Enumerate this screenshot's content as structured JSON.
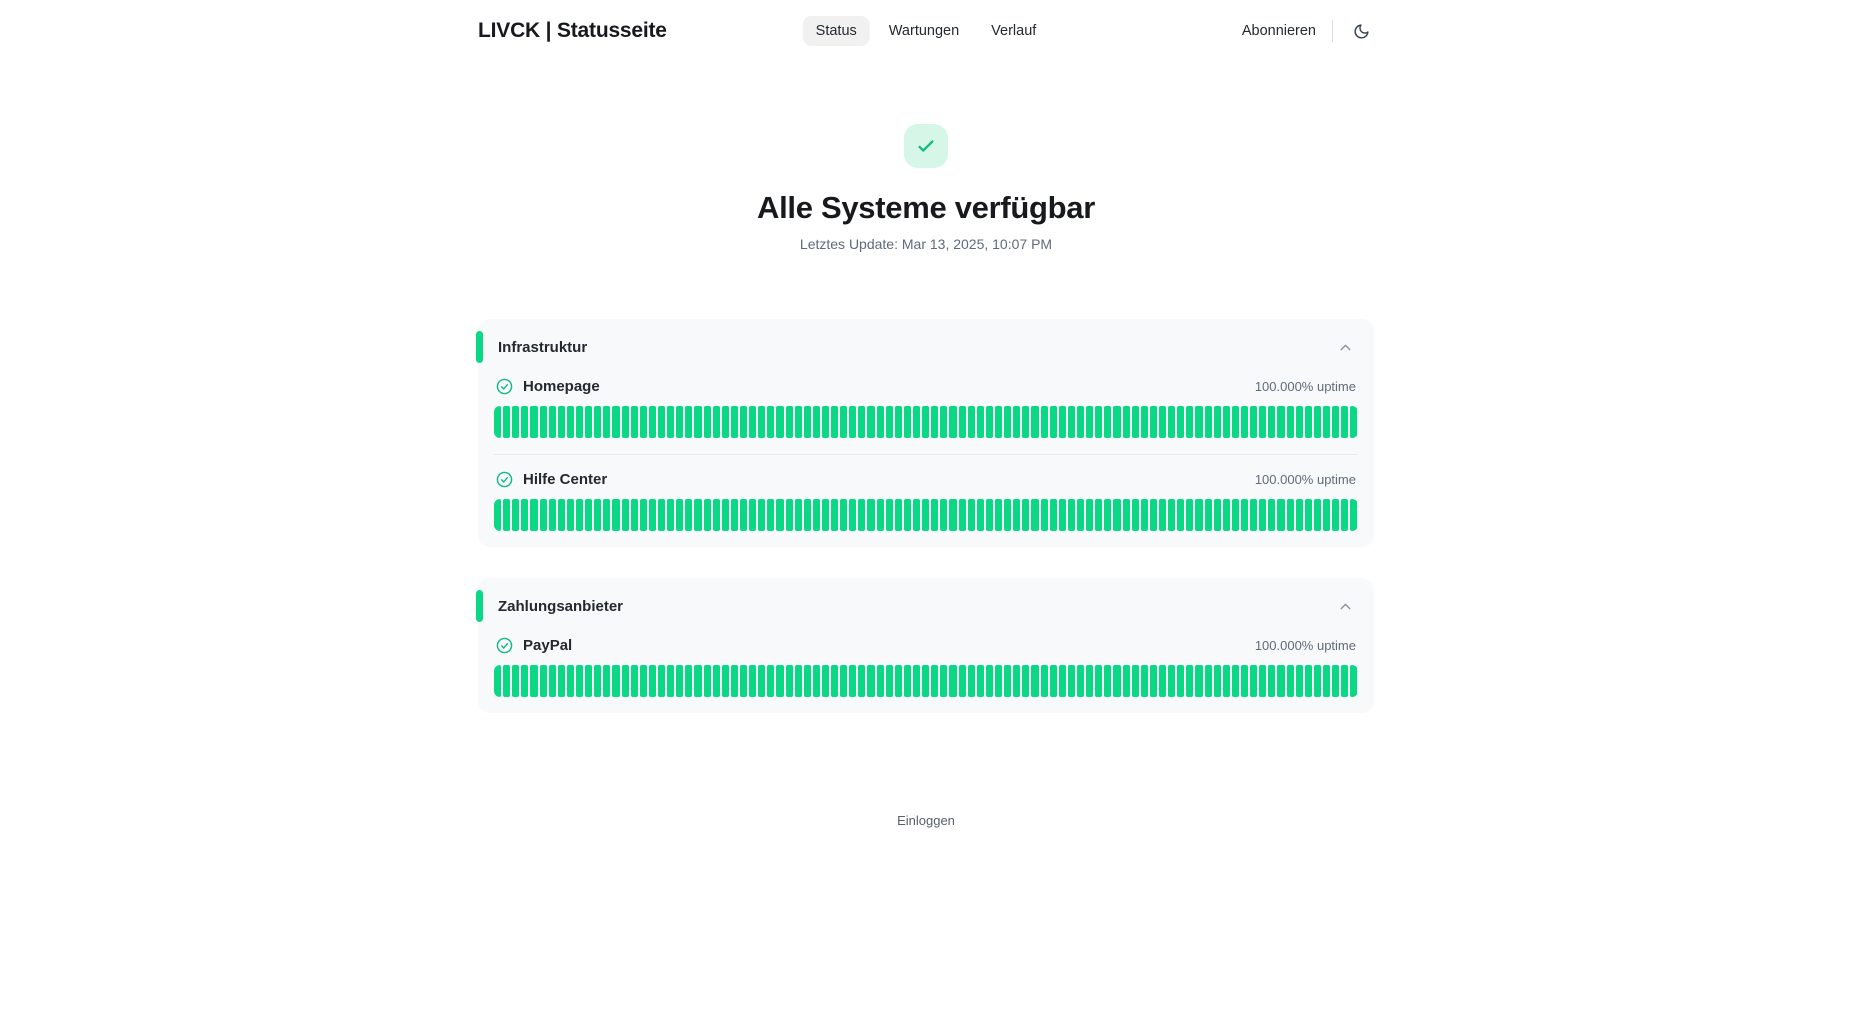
{
  "header": {
    "logo": "LIVCK | Statusseite",
    "nav": [
      {
        "label": "Status",
        "active": true
      },
      {
        "label": "Wartungen",
        "active": false
      },
      {
        "label": "Verlauf",
        "active": false
      }
    ],
    "subscribe_label": "Abonnieren",
    "theme_toggle_icon": "moon-icon"
  },
  "hero": {
    "status_icon": "check-icon",
    "title": "Alle Systeme verfügbar",
    "last_update": "Letztes Update: Mar 13, 2025, 10:07 PM"
  },
  "groups": [
    {
      "title": "Infrastruktur",
      "collapse_icon": "chevron-up-icon",
      "services": [
        {
          "name": "Homepage",
          "status_icon": "check-circle-icon",
          "uptime": "100.000% uptime"
        },
        {
          "name": "Hilfe Center",
          "status_icon": "check-circle-icon",
          "uptime": "100.000% uptime"
        }
      ]
    },
    {
      "title": "Zahlungsanbieter",
      "collapse_icon": "chevron-up-icon",
      "services": [
        {
          "name": "PayPal",
          "status_icon": "check-circle-icon",
          "uptime": "100.000% uptime"
        }
      ]
    }
  ],
  "uptime_bars": {
    "segments": 95,
    "status": "operational"
  },
  "footer": {
    "login_label": "Einloggen"
  },
  "colors": {
    "bar_green": "#0bd884",
    "icon_green": "#10b981",
    "badge_mint": "#d6f6e8",
    "card_bg": "#f8f9fa"
  }
}
